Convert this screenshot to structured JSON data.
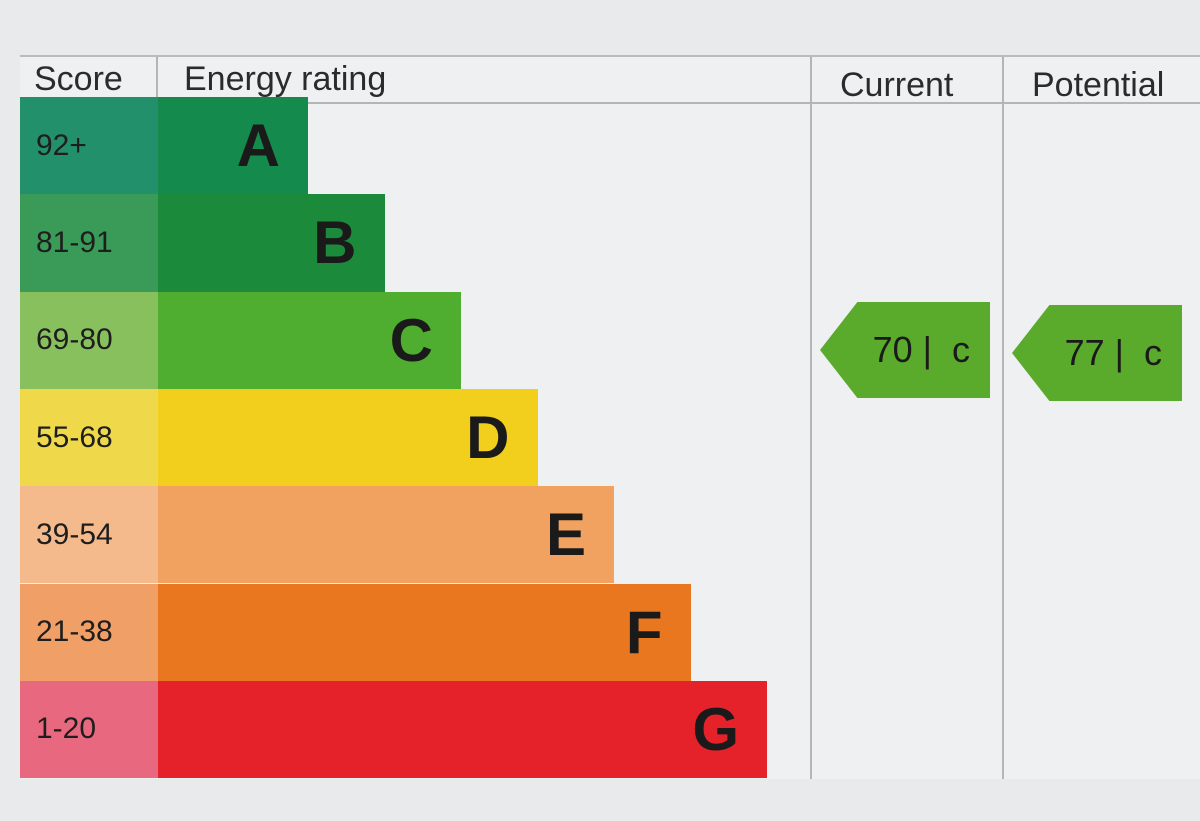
{
  "chart_data": {
    "type": "bar",
    "headers": {
      "score": "Score",
      "rating": "Energy rating",
      "current": "Current",
      "potential": "Potential"
    },
    "bands": [
      {
        "score": "92+",
        "letter": "A",
        "color": "#148a4c",
        "score_color": "#22906a"
      },
      {
        "score": "81-91",
        "letter": "B",
        "color": "#1b8b3b",
        "score_color": "#3a9a58"
      },
      {
        "score": "69-80",
        "letter": "C",
        "color": "#4fae30",
        "score_color": "#88c05e"
      },
      {
        "score": "55-68",
        "letter": "D",
        "color": "#f1cf1c",
        "score_color": "#efd84a"
      },
      {
        "score": "39-54",
        "letter": "E",
        "color": "#f2a260",
        "score_color": "#f4ba8c"
      },
      {
        "score": "21-38",
        "letter": "F",
        "color": "#e8771f",
        "score_color": "#f0a066"
      },
      {
        "score": "1-20",
        "letter": "G",
        "color": "#e52129",
        "score_color": "#e8697f"
      }
    ],
    "current": {
      "value": 70,
      "letter": "c",
      "label": "70 |  c",
      "band": "C",
      "color": "#5aaa2b"
    },
    "potential": {
      "value": 77,
      "letter": "c",
      "label": "77 |  c",
      "band": "C",
      "color": "#5aaa2b"
    }
  }
}
